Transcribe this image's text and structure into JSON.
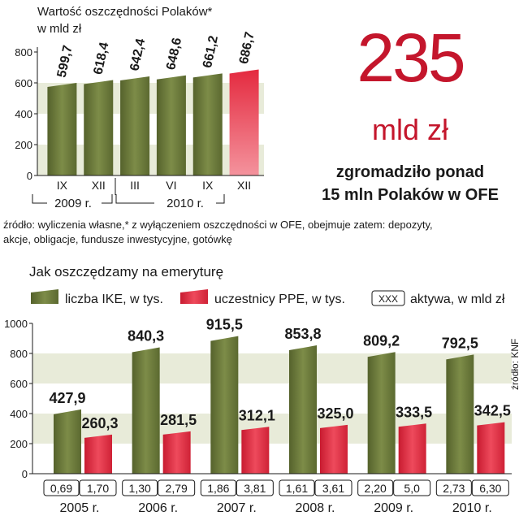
{
  "colors": {
    "green": "#6a7a3c",
    "green_light": "#8e9e5a",
    "red": "#d9263c",
    "red_light": "#f06a78",
    "band": "#e8ebd9",
    "accent": "#c4162c"
  },
  "top_chart": {
    "title_line1": "Wartość oszczędności Polaków*",
    "title_line2": "w mld zł",
    "yticks": [
      "0",
      "200",
      "400",
      "600",
      "800"
    ],
    "years": [
      "2009 r.",
      "2010 r."
    ]
  },
  "big_stat": {
    "number": "235",
    "unit": "mld zł",
    "caption_line1": "zgromadziło ponad",
    "caption_line2_plain": "15 mln Polaków w ",
    "caption_line2_bold": "OFE"
  },
  "source_note": {
    "line1": "źródło: wyliczenia własne,* z wyłączeniem oszczędności w OFE, obejmuje zatem: depozyty,",
    "line2": "akcje, obligacje, fundusze inwestycyjne, gotówkę"
  },
  "bottom_chart": {
    "title": "Jak oszczędzamy na emeryturę",
    "legend": {
      "ike": "liczba IKE, w tys.",
      "ppe": "uczestnicy PPE, w tys.",
      "box_label": "XXX",
      "assets": "aktywa, w mld zł"
    },
    "yticks": [
      "0",
      "200",
      "400",
      "600",
      "800",
      "1000"
    ],
    "source": "źródło: KNF"
  },
  "chart_data": [
    {
      "type": "bar",
      "title": "Wartość oszczędności Polaków*",
      "ylabel": "w mld zł",
      "categories": [
        "IX",
        "XII",
        "III",
        "VI",
        "IX",
        "XII"
      ],
      "values": [
        599.7,
        618.4,
        642.4,
        648.6,
        661.2,
        686.7
      ],
      "value_labels": [
        "599,7",
        "618,4",
        "642,4",
        "648,6",
        "661,2",
        "686,7"
      ],
      "highlight_last": true,
      "ylim": [
        0,
        800
      ]
    },
    {
      "type": "bar",
      "title": "Jak oszczędzamy na emeryturę",
      "categories": [
        "2005 r.",
        "2006 r.",
        "2007 r.",
        "2008 r.",
        "2009 r.",
        "2010 r."
      ],
      "series": [
        {
          "name": "liczba IKE, w tys.",
          "values": [
            427.9,
            840.3,
            915.5,
            853.8,
            809.2,
            792.5
          ],
          "labels": [
            "427,9",
            "840,3",
            "915,5",
            "853,8",
            "809,2",
            "792,5"
          ]
        },
        {
          "name": "uczestnicy PPE, w tys.",
          "values": [
            260.3,
            281.5,
            312.1,
            325.0,
            333.5,
            342.5
          ],
          "labels": [
            "260,3",
            "281,5",
            "312,1",
            "325,0",
            "333,5",
            "342,5"
          ]
        }
      ],
      "assets": {
        "name": "aktywa, w mld zł",
        "ike": [
          "0,69",
          "1,30",
          "1,86",
          "1,61",
          "2,20",
          "2,73"
        ],
        "ppe": [
          "1,70",
          "2,79",
          "3,81",
          "3,61",
          "5,0",
          "6,30"
        ]
      },
      "ylim": [
        0,
        1000
      ]
    }
  ]
}
